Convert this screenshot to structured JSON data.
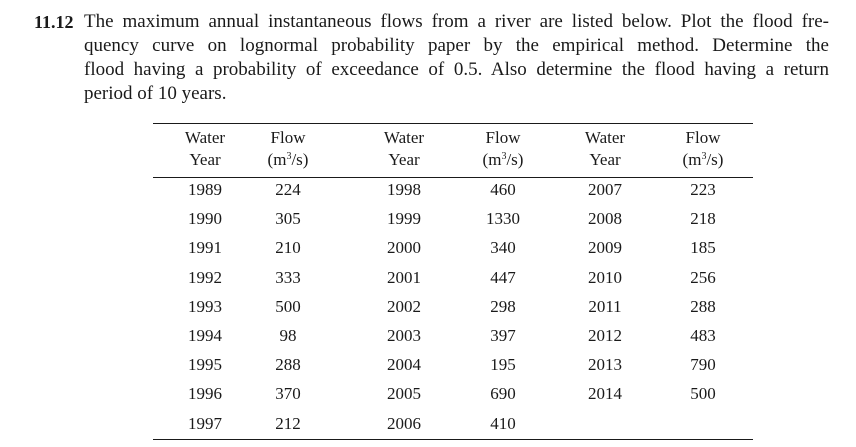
{
  "problem": {
    "number": "11.12",
    "lines": [
      "The maximum annual instantaneous flows from a river are listed below. Plot the flood fre-",
      "quency curve on lognormal probability paper by the empirical method. Determine the",
      "flood having a probability of exceedance of 0.5. Also determine the flood having a return",
      "period of 10 years."
    ]
  },
  "table": {
    "headers": [
      {
        "line1": "Water",
        "line2": "Year"
      },
      {
        "line1": "Flow",
        "line2": "(m",
        "sup": "3",
        "line2_end": "/s)"
      },
      {
        "line1": "Water",
        "line2": "Year"
      },
      {
        "line1": "Flow",
        "line2": "(m",
        "sup": "3",
        "line2_end": "/s)"
      },
      {
        "line1": "Water",
        "line2": "Year"
      },
      {
        "line1": "Flow",
        "line2": "(m",
        "sup": "3",
        "line2_end": "/s)"
      }
    ],
    "rows": [
      [
        "1989",
        "224",
        "1998",
        "460",
        "2007",
        "223"
      ],
      [
        "1990",
        "305",
        "1999",
        "1330",
        "2008",
        "218"
      ],
      [
        "1991",
        "210",
        "2000",
        "340",
        "2009",
        "185"
      ],
      [
        "1992",
        "333",
        "2001",
        "447",
        "2010",
        "256"
      ],
      [
        "1993",
        "500",
        "2002",
        "298",
        "2011",
        "288"
      ],
      [
        "1994",
        "98",
        "2003",
        "397",
        "2012",
        "483"
      ],
      [
        "1995",
        "288",
        "2004",
        "195",
        "2013",
        "790"
      ],
      [
        "1996",
        "370",
        "2005",
        "690",
        "2014",
        "500"
      ],
      [
        "1997",
        "212",
        "2006",
        "410",
        "",
        ""
      ]
    ]
  }
}
